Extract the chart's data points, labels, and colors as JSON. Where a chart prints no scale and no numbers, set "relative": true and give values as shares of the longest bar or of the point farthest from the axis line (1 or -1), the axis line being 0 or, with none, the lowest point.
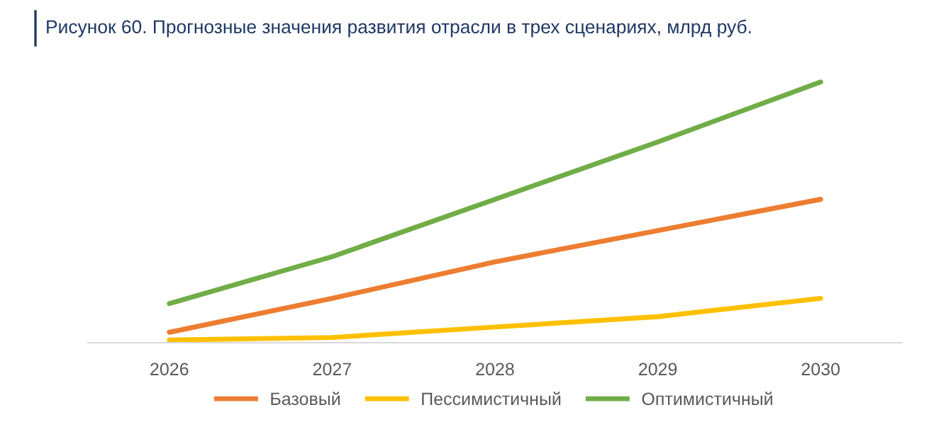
{
  "chart_data": {
    "type": "line",
    "title": "Рисунок 60. Прогнозные значения развития отрасли в трех сценариях, млрд руб.",
    "categories": [
      "2026",
      "2027",
      "2028",
      "2029",
      "2030"
    ],
    "relative": true,
    "legend": "bottom",
    "grid": false,
    "marker": "none",
    "line_style": "solid",
    "series": [
      {
        "name": "Базовый",
        "color": "#ed7d31",
        "values": [
          0.04,
          0.17,
          0.31,
          0.43,
          0.55
        ]
      },
      {
        "name": "Пессимистичный",
        "color": "#ffc000",
        "values": [
          0.01,
          0.02,
          0.06,
          0.1,
          0.17
        ]
      },
      {
        "name": "Оптимистичный",
        "color": "#70ad47",
        "values": [
          0.15,
          0.33,
          0.55,
          0.77,
          1.0
        ]
      }
    ]
  }
}
